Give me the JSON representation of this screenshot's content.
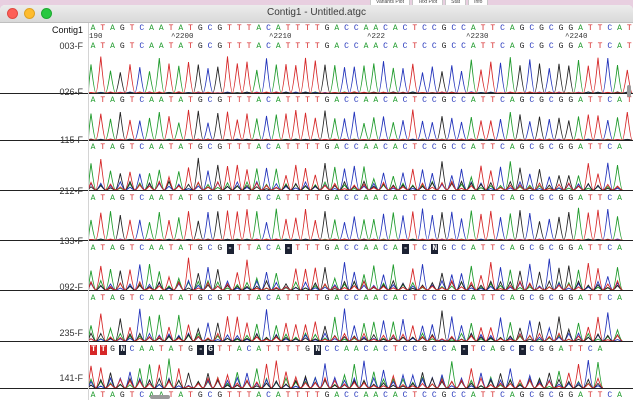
{
  "top_tabs": [
    "Variants Plot",
    "Text Plot",
    "Stat",
    "Info"
  ],
  "window": {
    "title": "Contig1 - Untitled.atgc"
  },
  "header": {
    "label": "Contig1"
  },
  "ruler": {
    "consensus": "ATAGTCAATATGCGTTTACATTTTGACCAACACTCCGCCATTCAGCGCGGATTCAT",
    "ticks": [
      {
        "text": "190"
      },
      {
        "text": "^2200"
      },
      {
        "text": "^2210"
      },
      {
        "text": "^222"
      },
      {
        "text": "^2230"
      },
      {
        "text": "^2240"
      }
    ]
  },
  "reads": [
    {
      "name": "003-F",
      "sequence": "ATAGTCAATATGCGTTTACATTTTGACCAACACTCCGCCATTCAGCGCGGATTCAT",
      "highlights": []
    },
    {
      "name": "026-F",
      "sequence": "ATAGTCAATATGCGTTTACATTTTGACCAACACTCCGCCATTCAGCGCGGATTCAT",
      "highlights": []
    },
    {
      "name": "115-F",
      "sequence": "ATAGTCAATATGCGTTTACATTTTGACCAACACTCCGCCATTCAGCGCGGATTCA",
      "highlights": []
    },
    {
      "name": "212-F",
      "sequence": "ATAGTCAATATGCGTTTACATTTTGACCAACACTCCGCCATTCAGCGCGGATTCA",
      "highlights": []
    },
    {
      "name": "133-F",
      "sequence": "ATAGTCAATATGCG-TTACA-TTTGACCAACA-TCNGCCATTCAGCGCGGATTCA",
      "highlights": [
        14,
        20,
        32,
        35
      ]
    },
    {
      "name": "092-F",
      "sequence": "ATAGTCAATATGCGTTTACATTTTGACCAACACTCCGCCATTCAGCGCGGATTCA",
      "highlights": []
    },
    {
      "name": "235-F",
      "sequence": "TTGNCAATATG-GTTACATTTTGNCCAACACTCCGCCA-TCAGC-CGGATTCA",
      "highlights": [
        0,
        1,
        3,
        11,
        12,
        23,
        38,
        44
      ]
    },
    {
      "name": "141-F",
      "sequence": "ATAGTCAATATGCGTTTACATTTTGACCAACACTCCGCCATTCAGCGCGGATTCA",
      "highlights": []
    }
  ],
  "colors": {
    "A": "#1f9b2c",
    "T": "#d62728",
    "G": "#222222",
    "C": "#2233bb",
    "N": "#222222",
    "gap": "#222222",
    "hl_red": "#d62728",
    "hl_dark": "#1c2233"
  }
}
